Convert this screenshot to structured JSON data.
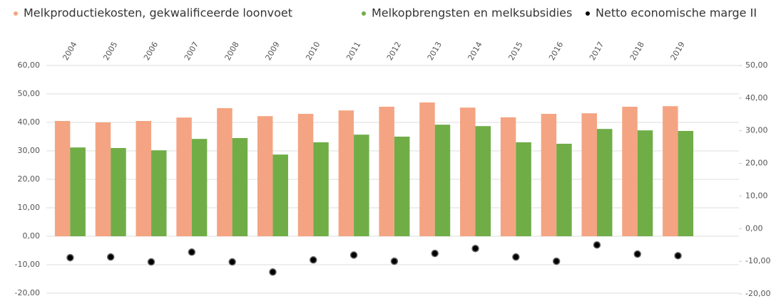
{
  "chart_data": {
    "type": "bar",
    "categories": [
      "2004",
      "2005",
      "2006",
      "2007",
      "2008",
      "2009",
      "2010",
      "2011",
      "2012",
      "2013",
      "2014",
      "2015",
      "2016",
      "2017",
      "2018",
      "2019"
    ],
    "series": [
      {
        "name": "Melkproductiekosten, gekwalificeerde loonvoet",
        "color": "#f4a482",
        "type": "bar",
        "values": [
          40.5,
          40,
          40.5,
          41.7,
          45,
          42.2,
          43,
          44.2,
          45.5,
          47,
          45.2,
          41.8,
          43,
          43.2,
          45.5,
          45.7
        ]
      },
      {
        "name": "Melkopbrengsten en melksubsidies",
        "color": "#70ad47",
        "type": "bar",
        "values": [
          31.2,
          31,
          30.2,
          34.2,
          34.5,
          28.7,
          33,
          35.7,
          35,
          39.2,
          38.7,
          33,
          32.5,
          37.7,
          37.2,
          37
        ]
      },
      {
        "name": "Netto economische marge II",
        "color": "#000000",
        "type": "scatter",
        "axis": "y2",
        "values": [
          -8.9,
          -8.7,
          -10.2,
          -7.2,
          -10.2,
          -13.3,
          -9.6,
          -8.1,
          -10,
          -7.6,
          -6.1,
          -8.7,
          -10,
          -5,
          -7.8,
          -8.3
        ]
      }
    ],
    "ylim": [
      -20,
      60
    ],
    "yticks": [
      {
        "value": -20,
        "label": "-20,00"
      },
      {
        "value": -10,
        "label": "-10,00"
      },
      {
        "value": 0,
        "label": "0,00"
      },
      {
        "value": 10,
        "label": "10,00"
      },
      {
        "value": 20,
        "label": "20,00"
      },
      {
        "value": 30,
        "label": "30,00"
      },
      {
        "value": 40,
        "label": "40,00"
      },
      {
        "value": 50,
        "label": "50,00"
      },
      {
        "value": 60,
        "label": "60,00"
      }
    ],
    "y2lim": [
      -20,
      50
    ],
    "y2ticks": [
      {
        "value": -20,
        "label": "-20,00"
      },
      {
        "value": -10,
        "label": "-10,00"
      },
      {
        "value": 0,
        "label": "0,00"
      },
      {
        "value": 10,
        "label": "10,00"
      },
      {
        "value": 20,
        "label": "20,00"
      },
      {
        "value": 30,
        "label": "30,00"
      },
      {
        "value": 40,
        "label": "40,00"
      },
      {
        "value": 50,
        "label": "50,00"
      }
    ],
    "grid": true,
    "legend": "top"
  }
}
